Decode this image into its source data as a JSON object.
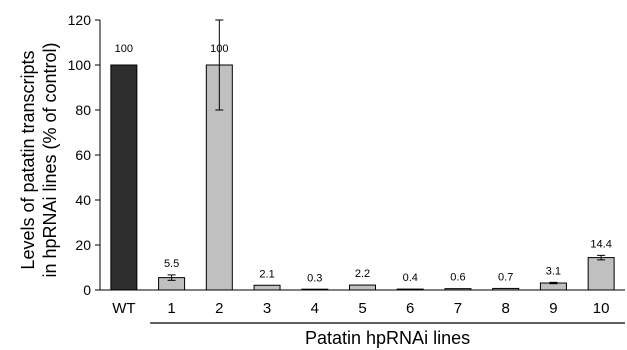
{
  "chart_data": {
    "type": "bar",
    "title": "",
    "ylabel_line1": "Levels of patatin transcripts",
    "ylabel_line2": "in hpRNAi lines (% of control)",
    "xlabel": "Patatin hpRNAi lines",
    "ylim": [
      0,
      120
    ],
    "yticks": [
      0,
      20,
      40,
      60,
      80,
      100,
      120
    ],
    "grid": false,
    "categories": [
      "WT",
      "1",
      "2",
      "3",
      "4",
      "5",
      "6",
      "7",
      "8",
      "9",
      "10"
    ],
    "values": [
      100,
      5.5,
      100,
      2.1,
      0.3,
      2.2,
      0.4,
      0.6,
      0.7,
      3.1,
      14.4
    ],
    "data_labels": [
      "100",
      "5.5",
      "100",
      "2.1",
      "0.3",
      "2.2",
      "0.4",
      "0.6",
      "0.7",
      "3.1",
      "14.4"
    ],
    "errors": [
      0,
      1.2,
      20,
      0,
      0,
      0,
      0,
      0,
      0,
      0.3,
      1.0
    ],
    "colors": {
      "control": "#2e2e2e",
      "lines": "#c0c0c0",
      "outline": "#000000"
    }
  }
}
